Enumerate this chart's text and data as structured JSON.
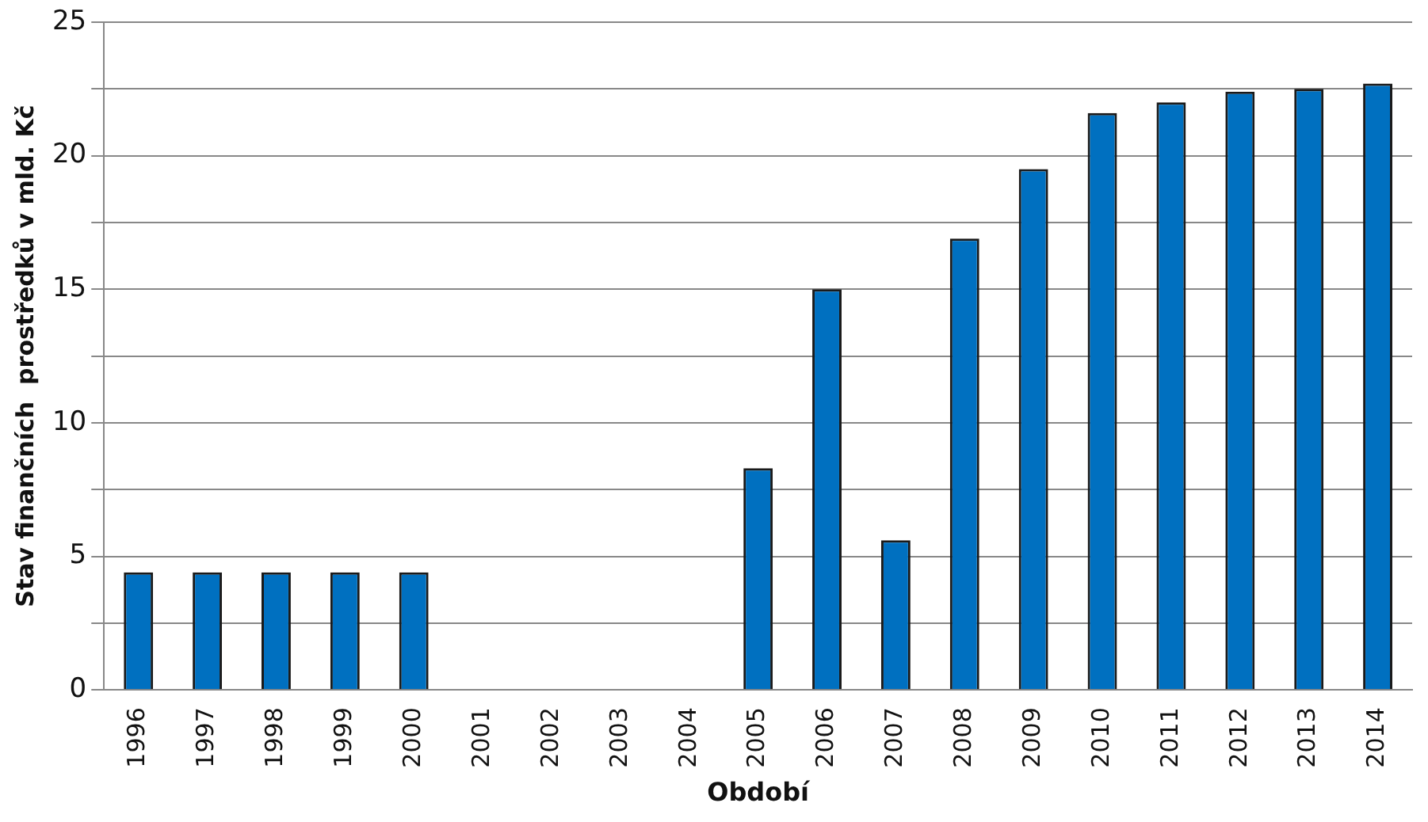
{
  "chart_data": {
    "type": "bar",
    "xlabel": "Období",
    "ylabel": "Stav finančních  prostředků v mld. Kč",
    "categories": [
      "1996",
      "1997",
      "1998",
      "1999",
      "2000",
      "2001",
      "2002",
      "2003",
      "2004",
      "2005",
      "2006",
      "2007",
      "2008",
      "2009",
      "2010",
      "2011",
      "2012",
      "2013",
      "2014"
    ],
    "values": [
      4.4,
      4.4,
      4.4,
      4.4,
      4.4,
      null,
      null,
      null,
      null,
      8.3,
      15.0,
      5.6,
      16.9,
      19.5,
      21.6,
      22.0,
      22.4,
      22.5,
      22.7
    ],
    "color": "#0070c0",
    "ylim": [
      0,
      25
    ],
    "yticks": [
      0,
      {
        "value": 2.5,
        "label": null
      },
      5,
      {
        "value": 7.5,
        "label": null
      },
      10,
      {
        "value": 12.5,
        "label": null
      },
      15,
      {
        "value": 17.5,
        "label": null
      },
      20,
      {
        "value": 22.5,
        "label": null
      },
      25
    ],
    "grid": "y"
  }
}
